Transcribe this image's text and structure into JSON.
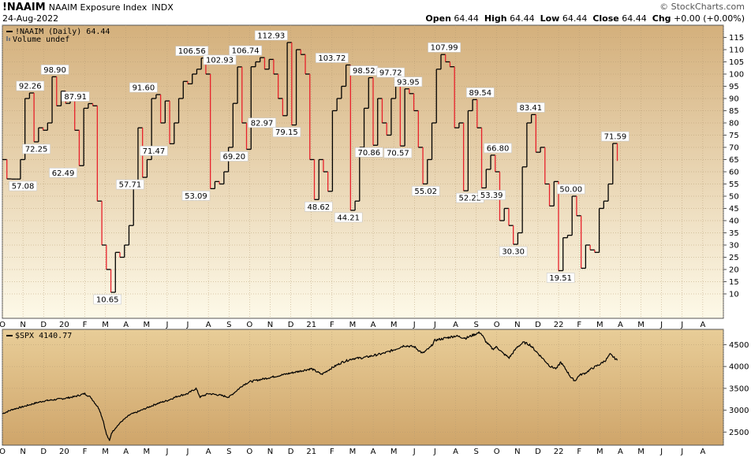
{
  "header": {
    "symbol": "!NAAIM",
    "description": "NAAIM Exposure Index",
    "exchange": "INDX",
    "date": "24-Aug-2022",
    "brand": "© StockCharts.com",
    "open_label": "Open",
    "open": "64.44",
    "high_label": "High",
    "high": "64.44",
    "low_label": "Low",
    "low": "64.44",
    "close_label": "Close",
    "close": "64.44",
    "chg_label": "Chg",
    "chg": "+0.00 (+0.00%)"
  },
  "colors": {
    "up": "#000000",
    "down": "#e8202a",
    "accent": "#1a3f8f"
  },
  "chart_data": [
    {
      "type": "line",
      "legend": "!NAAIM (Daily) 64.44",
      "legend2": "Volume undef",
      "ylim": [
        0,
        120
      ],
      "yticks": [
        10,
        15,
        20,
        25,
        30,
        35,
        40,
        45,
        50,
        55,
        60,
        65,
        70,
        75,
        80,
        85,
        90,
        95,
        100,
        105,
        110,
        115
      ],
      "xlim": [
        0,
        35
      ],
      "month_labels": [
        "O",
        "N",
        "D",
        "20",
        "F",
        "M",
        "A",
        "M",
        "J",
        "J",
        "A",
        "S",
        "O",
        "N",
        "D",
        "21",
        "F",
        "M",
        "A",
        "M",
        "J",
        "J",
        "A",
        "S",
        "O",
        "N",
        "D",
        "22",
        "F",
        "M",
        "A",
        "M",
        "J",
        "J",
        "A"
      ],
      "step_values": [
        65,
        57.08,
        57,
        57,
        65,
        90,
        92.26,
        72.25,
        78,
        77,
        80,
        98.9,
        87,
        93,
        88,
        92,
        77,
        62.49,
        86,
        87.91,
        87,
        48,
        30,
        20,
        10.65,
        27,
        25,
        30,
        38,
        55,
        78,
        57.71,
        65,
        90,
        91.6,
        80,
        89,
        71.47,
        80,
        90,
        97,
        96,
        100,
        102,
        106.56,
        100,
        53.09,
        56,
        55,
        60,
        70,
        88,
        102.93,
        80,
        69.2,
        103,
        105,
        106.74,
        102,
        106,
        100,
        90,
        82.97,
        112.93,
        79.15,
        110,
        108,
        100,
        65,
        48.62,
        65,
        60,
        52,
        85,
        90,
        95,
        103.72,
        44.21,
        48,
        70,
        86,
        98.52,
        70.86,
        90,
        80,
        75,
        90,
        97.72,
        70.57,
        93.95,
        92,
        85,
        70,
        55.02,
        65,
        80,
        102,
        107.99,
        105,
        103,
        78,
        80,
        52.22,
        85,
        89.54,
        78,
        53.39,
        61,
        66.8,
        60,
        40,
        45,
        38,
        30.3,
        35,
        62,
        80,
        83.41,
        68,
        70,
        55,
        46,
        56,
        19.51,
        33,
        34,
        50,
        42,
        20.5,
        30,
        28,
        27,
        45,
        48,
        55,
        71.59,
        64.44
      ],
      "annotations": [
        {
          "x": 1.0,
          "v": "57.08",
          "pos": "below"
        },
        {
          "x": 1.35,
          "v": "92.26",
          "pos": "above"
        },
        {
          "x": 1.65,
          "v": "72.25",
          "pos": "below"
        },
        {
          "x": 2.55,
          "v": "98.90",
          "pos": "above"
        },
        {
          "x": 2.95,
          "v": "62.49",
          "pos": "below"
        },
        {
          "x": 3.55,
          "v": "87.91",
          "pos": "above"
        },
        {
          "x": 5.1,
          "v": "10.65",
          "pos": "below"
        },
        {
          "x": 6.2,
          "v": "57.71",
          "pos": "below"
        },
        {
          "x": 6.85,
          "v": "91.60",
          "pos": "above"
        },
        {
          "x": 7.35,
          "v": "71.47",
          "pos": "below"
        },
        {
          "x": 9.2,
          "v": "106.56",
          "pos": "above"
        },
        {
          "x": 9.4,
          "v": "53.09",
          "pos": "below"
        },
        {
          "x": 10.55,
          "v": "102.93",
          "pos": "above"
        },
        {
          "x": 11.25,
          "v": "69.20",
          "pos": "below"
        },
        {
          "x": 11.8,
          "v": "106.74",
          "pos": "above"
        },
        {
          "x": 13.05,
          "v": "112.93",
          "pos": "above"
        },
        {
          "x": 12.6,
          "v": "82.97",
          "pos": "below"
        },
        {
          "x": 13.8,
          "v": "79.15",
          "pos": "below"
        },
        {
          "x": 15.35,
          "v": "48.62",
          "pos": "below"
        },
        {
          "x": 16.0,
          "v": "103.72",
          "pos": "above"
        },
        {
          "x": 16.8,
          "v": "44.21",
          "pos": "below"
        },
        {
          "x": 17.55,
          "v": "98.52",
          "pos": "above"
        },
        {
          "x": 17.8,
          "v": "70.86",
          "pos": "below"
        },
        {
          "x": 18.85,
          "v": "97.72",
          "pos": "above"
        },
        {
          "x": 19.2,
          "v": "70.57",
          "pos": "below"
        },
        {
          "x": 19.7,
          "v": "93.95",
          "pos": "above"
        },
        {
          "x": 20.55,
          "v": "55.02",
          "pos": "below"
        },
        {
          "x": 21.45,
          "v": "107.99",
          "pos": "above"
        },
        {
          "x": 22.7,
          "v": "52.22",
          "pos": "below"
        },
        {
          "x": 23.2,
          "v": "89.54",
          "pos": "above"
        },
        {
          "x": 23.75,
          "v": "53.39",
          "pos": "below"
        },
        {
          "x": 24.05,
          "v": "66.80",
          "pos": "above"
        },
        {
          "x": 24.8,
          "v": "30.30",
          "pos": "below"
        },
        {
          "x": 25.65,
          "v": "83.41",
          "pos": "above"
        },
        {
          "x": 27.1,
          "v": "19.51",
          "pos": "below"
        },
        {
          "x": 27.6,
          "v": "50.00",
          "pos": "above"
        },
        {
          "x": 29.75,
          "v": "71.59",
          "pos": "above"
        }
      ]
    },
    {
      "type": "line",
      "legend": "$SPX 4140.77",
      "ylim": [
        2200,
        4850
      ],
      "yticks": [
        2500,
        3000,
        3500,
        4000,
        4500
      ],
      "xlim": [
        0,
        35
      ],
      "month_labels": [
        "O",
        "N",
        "D",
        "20",
        "F",
        "M",
        "A",
        "M",
        "J",
        "J",
        "A",
        "S",
        "O",
        "N",
        "D",
        "21",
        "F",
        "M",
        "A",
        "M",
        "J",
        "J",
        "A",
        "S",
        "O",
        "N",
        "D",
        "22",
        "F",
        "M",
        "A",
        "M",
        "J",
        "J",
        "A"
      ],
      "keypoints": [
        [
          0,
          2920
        ],
        [
          0.5,
          3020
        ],
        [
          1,
          3080
        ],
        [
          1.5,
          3150
        ],
        [
          2,
          3210
        ],
        [
          2.5,
          3240
        ],
        [
          3,
          3270
        ],
        [
          3.5,
          3310
        ],
        [
          4,
          3380
        ],
        [
          4.3,
          3290
        ],
        [
          4.7,
          3030
        ],
        [
          4.9,
          2750
        ],
        [
          5.05,
          2450
        ],
        [
          5.2,
          2300
        ],
        [
          5.3,
          2480
        ],
        [
          5.5,
          2600
        ],
        [
          5.8,
          2750
        ],
        [
          6.2,
          2900
        ],
        [
          6.5,
          2950
        ],
        [
          7,
          3050
        ],
        [
          7.5,
          3150
        ],
        [
          8,
          3220
        ],
        [
          8.5,
          3320
        ],
        [
          9,
          3380
        ],
        [
          9.4,
          3500
        ],
        [
          9.6,
          3300
        ],
        [
          10,
          3380
        ],
        [
          10.5,
          3350
        ],
        [
          11,
          3300
        ],
        [
          11.3,
          3420
        ],
        [
          11.7,
          3580
        ],
        [
          12,
          3650
        ],
        [
          12.5,
          3700
        ],
        [
          13,
          3750
        ],
        [
          13.5,
          3800
        ],
        [
          14,
          3850
        ],
        [
          14.5,
          3900
        ],
        [
          15,
          3950
        ],
        [
          15.5,
          3820
        ],
        [
          16,
          3970
        ],
        [
          16.5,
          4100
        ],
        [
          17,
          4180
        ],
        [
          17.5,
          4200
        ],
        [
          18,
          4250
        ],
        [
          18.5,
          4300
        ],
        [
          19,
          4380
        ],
        [
          19.5,
          4480
        ],
        [
          20,
          4450
        ],
        [
          20.4,
          4300
        ],
        [
          20.8,
          4450
        ],
        [
          21,
          4600
        ],
        [
          21.5,
          4650
        ],
        [
          22,
          4700
        ],
        [
          22.5,
          4650
        ],
        [
          23,
          4750
        ],
        [
          23.2,
          4780
        ],
        [
          23.5,
          4550
        ],
        [
          23.8,
          4400
        ],
        [
          24,
          4450
        ],
        [
          24.3,
          4300
        ],
        [
          24.6,
          4200
        ],
        [
          25,
          4450
        ],
        [
          25.3,
          4550
        ],
        [
          25.6,
          4500
        ],
        [
          26,
          4300
        ],
        [
          26.3,
          4150
        ],
        [
          26.6,
          4000
        ],
        [
          26.9,
          3950
        ],
        [
          27.1,
          4100
        ],
        [
          27.4,
          3900
        ],
        [
          27.6,
          3750
        ],
        [
          27.8,
          3670
        ],
        [
          28,
          3800
        ],
        [
          28.3,
          3850
        ],
        [
          28.6,
          3950
        ],
        [
          29,
          4050
        ],
        [
          29.3,
          4150
        ],
        [
          29.5,
          4280
        ],
        [
          29.7,
          4200
        ],
        [
          29.85,
          4140.77
        ]
      ]
    }
  ]
}
